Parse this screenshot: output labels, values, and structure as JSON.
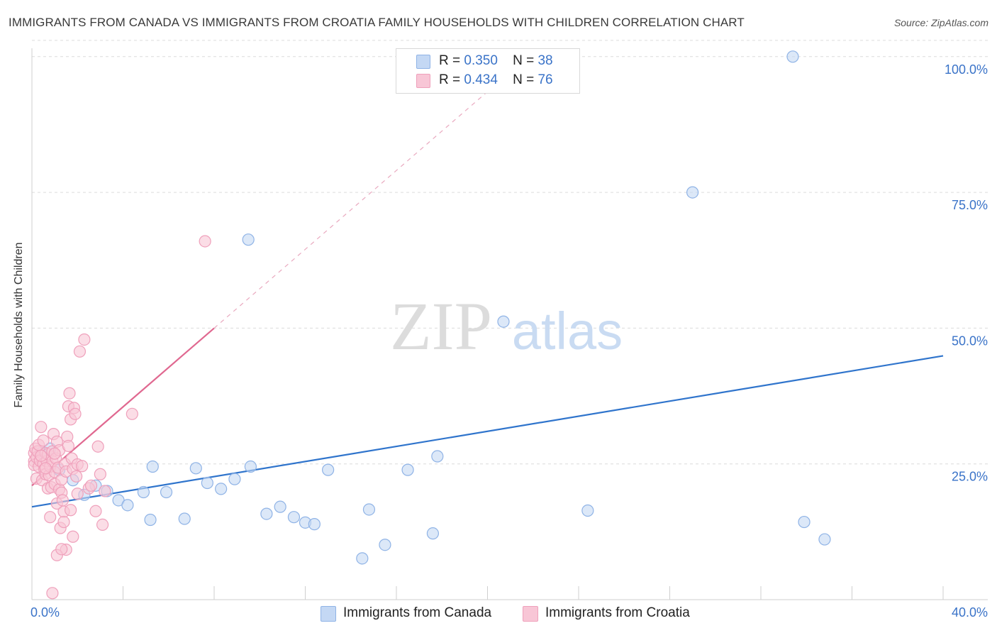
{
  "title": "IMMIGRANTS FROM CANADA VS IMMIGRANTS FROM CROATIA FAMILY HOUSEHOLDS WITH CHILDREN CORRELATION CHART",
  "source": "Source: ZipAtlas.com",
  "watermark": {
    "zip": "ZIP",
    "atlas": "atlas"
  },
  "legend": {
    "r_label": "R =",
    "n_label": "N =",
    "rows": [
      {
        "r": "0.350",
        "n": "38"
      },
      {
        "r": "0.434",
        "n": "76"
      }
    ]
  },
  "colors": {
    "canada_fill": "#c4d8f4",
    "canada_stroke": "#8fb3e6",
    "canada_line": "#2f74cc",
    "croatia_fill": "#f8c6d6",
    "croatia_stroke": "#efa0bb",
    "croatia_line": "#e06890",
    "grid": "#dcdcdc",
    "tick_label": "#3a73c8"
  },
  "chart_data": {
    "type": "scatter",
    "xlabel": "",
    "ylabel": "Family Households with Children",
    "xlim": [
      0,
      40
    ],
    "ylim": [
      0,
      103
    ],
    "x_tick_labels": [
      {
        "value": 0,
        "label": "0.0%"
      },
      {
        "value": 40,
        "label": "40.0%"
      }
    ],
    "y_tick_labels": [
      {
        "value": 25,
        "label": "25.0%"
      },
      {
        "value": 50,
        "label": "50.0%"
      },
      {
        "value": 75,
        "label": "75.0%"
      },
      {
        "value": 100,
        "label": "100.0%"
      }
    ],
    "x_minor_ticks": [
      4,
      8,
      12,
      16,
      20,
      24,
      28,
      32,
      36,
      40
    ],
    "series": [
      {
        "name": "Immigrants from Canada",
        "r": 0.35,
        "n": 38,
        "trend": {
          "x0": 0,
          "y0": 17.1,
          "x1": 40,
          "y1": 44.9
        },
        "points": [
          [
            0.4,
            27
          ],
          [
            0.8,
            27.8
          ],
          [
            1.2,
            23.9
          ],
          [
            1.8,
            22
          ],
          [
            2.3,
            19.3
          ],
          [
            2.8,
            21
          ],
          [
            3.3,
            20
          ],
          [
            3.8,
            18.3
          ],
          [
            4.2,
            17.4
          ],
          [
            4.9,
            19.8
          ],
          [
            5.2,
            14.7
          ],
          [
            5.3,
            24.5
          ],
          [
            5.9,
            19.8
          ],
          [
            6.7,
            14.9
          ],
          [
            7.2,
            24.2
          ],
          [
            7.7,
            21.5
          ],
          [
            8.3,
            20.4
          ],
          [
            8.9,
            22.2
          ],
          [
            9.5,
            66.3
          ],
          [
            9.6,
            24.5
          ],
          [
            10.3,
            15.8
          ],
          [
            10.9,
            17.1
          ],
          [
            11.5,
            15.2
          ],
          [
            12.0,
            14.2
          ],
          [
            12.4,
            13.9
          ],
          [
            13.0,
            23.9
          ],
          [
            14.5,
            7.6
          ],
          [
            14.8,
            16.6
          ],
          [
            15.5,
            10.1
          ],
          [
            16.5,
            23.9
          ],
          [
            17.6,
            12.2
          ],
          [
            17.8,
            26.4
          ],
          [
            20.7,
            51.2
          ],
          [
            24.4,
            16.4
          ],
          [
            29.0,
            75
          ],
          [
            33.4,
            100
          ],
          [
            33.9,
            14.3
          ],
          [
            34.8,
            11.1
          ]
        ]
      },
      {
        "name": "Immigrants from Croatia",
        "r": 0.434,
        "n": 76,
        "trend": {
          "x0": 0,
          "y0": 21.0,
          "x1": 8.0,
          "y1": 50.0
        },
        "trend_ext": {
          "x0": 8.0,
          "y0": 50.0,
          "x1": 21.5,
          "y1": 99.0
        },
        "points": [
          [
            0.1,
            27
          ],
          [
            0.1,
            25.5
          ],
          [
            0.1,
            24.8
          ],
          [
            0.15,
            27.8
          ],
          [
            0.2,
            26.2
          ],
          [
            0.2,
            22.3
          ],
          [
            0.25,
            27.3
          ],
          [
            0.3,
            24.5
          ],
          [
            0.3,
            28.5
          ],
          [
            0.35,
            25.6
          ],
          [
            0.4,
            31.8
          ],
          [
            0.45,
            22.0
          ],
          [
            0.5,
            25.0
          ],
          [
            0.5,
            29.3
          ],
          [
            0.55,
            24.0
          ],
          [
            0.6,
            27.0
          ],
          [
            0.6,
            23.1
          ],
          [
            0.65,
            25.5
          ],
          [
            0.7,
            20.5
          ],
          [
            0.7,
            26.8
          ],
          [
            0.75,
            22.9
          ],
          [
            0.8,
            15.2
          ],
          [
            0.8,
            24.5
          ],
          [
            0.85,
            20.7
          ],
          [
            0.9,
            27.3
          ],
          [
            0.9,
            25.5
          ],
          [
            0.95,
            30.5
          ],
          [
            1.0,
            21.3
          ],
          [
            1.0,
            23.5
          ],
          [
            1.05,
            26.0
          ],
          [
            1.1,
            17.7
          ],
          [
            1.1,
            29.1
          ],
          [
            1.15,
            24.3
          ],
          [
            1.2,
            20.3
          ],
          [
            1.2,
            27.5
          ],
          [
            1.25,
            13.2
          ],
          [
            1.3,
            19.7
          ],
          [
            1.3,
            22.1
          ],
          [
            1.35,
            18.3
          ],
          [
            1.4,
            16.2
          ],
          [
            1.4,
            14.3
          ],
          [
            1.45,
            25.0
          ],
          [
            1.5,
            9.2
          ],
          [
            1.5,
            23.6
          ],
          [
            1.55,
            30.0
          ],
          [
            1.6,
            28.3
          ],
          [
            1.6,
            35.6
          ],
          [
            1.65,
            38.0
          ],
          [
            1.7,
            33.2
          ],
          [
            1.7,
            16.5
          ],
          [
            1.75,
            26.0
          ],
          [
            1.8,
            24.1
          ],
          [
            1.8,
            11.6
          ],
          [
            1.85,
            35.3
          ],
          [
            1.9,
            34.2
          ],
          [
            1.95,
            22.7
          ],
          [
            2.0,
            24.9
          ],
          [
            2.0,
            19.5
          ],
          [
            2.1,
            45.7
          ],
          [
            2.2,
            24.6
          ],
          [
            2.3,
            47.9
          ],
          [
            2.5,
            20.5
          ],
          [
            2.8,
            16.3
          ],
          [
            2.9,
            28.2
          ],
          [
            3.0,
            23.1
          ],
          [
            3.1,
            13.8
          ],
          [
            3.2,
            20.0
          ],
          [
            4.4,
            34.2
          ],
          [
            7.6,
            66.0
          ],
          [
            0.9,
            1.2
          ],
          [
            1.1,
            8.2
          ],
          [
            1.3,
            9.3
          ],
          [
            0.6,
            24.2
          ],
          [
            0.4,
            26.5
          ],
          [
            1.0,
            26.9
          ],
          [
            2.6,
            21.0
          ]
        ]
      }
    ]
  },
  "bottom_legend": [
    {
      "label": "Immigrants from Canada"
    },
    {
      "label": "Immigrants from Croatia"
    }
  ]
}
